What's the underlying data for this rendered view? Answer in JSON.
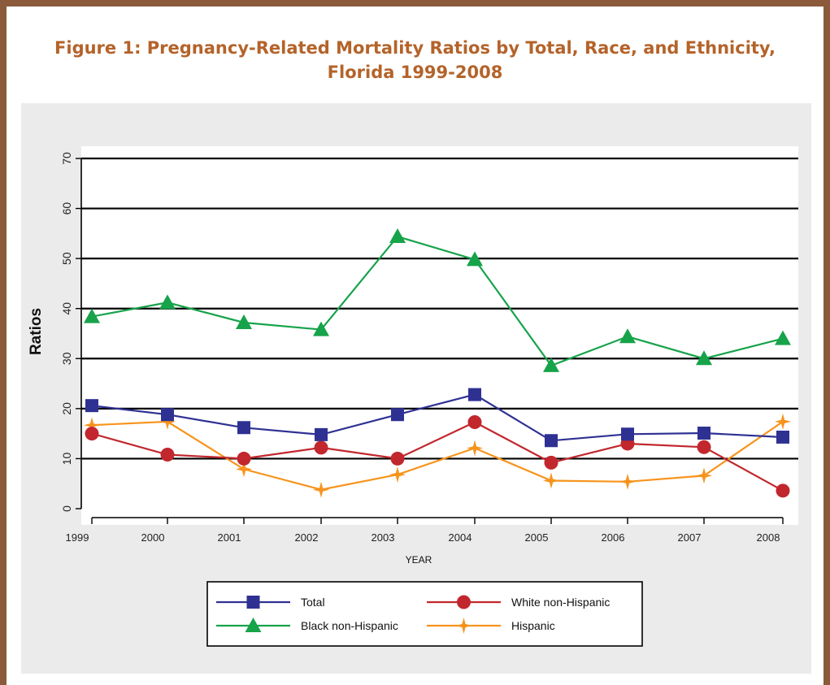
{
  "title": "Figure 1: Pregnancy-Related Mortality Ratios by Total, Race, and Ethnicity, Florida 1999-2008",
  "colors": {
    "frame": "#8a5a3b",
    "title": "#b4632a",
    "panel": "#ebebeb",
    "total": "#2e3192",
    "white": "#c1272d",
    "black": "#16a34a",
    "hispanic": "#f7941d"
  },
  "chart_data": {
    "type": "line",
    "title": "Figure 1: Pregnancy-Related Mortality Ratios by Total, Race, and Ethnicity, Florida 1999-2008",
    "xlabel": "YEAR",
    "ylabel": "Ratios",
    "x": [
      "1999",
      "2000",
      "2001",
      "2002",
      "2003",
      "2004",
      "2005",
      "2006",
      "2007",
      "2008"
    ],
    "yticks": [
      "0",
      "10",
      "20",
      "30",
      "40",
      "50",
      "60",
      "70"
    ],
    "ylim": [
      0,
      70
    ],
    "grid": "horizontal",
    "legend_position": "bottom",
    "series": [
      {
        "name": "Total",
        "marker": "square",
        "color": "#2e3192",
        "values": [
          20.6,
          18.8,
          16.2,
          14.8,
          18.8,
          22.8,
          13.6,
          14.9,
          15.1,
          14.3
        ]
      },
      {
        "name": "White non-Hispanic",
        "marker": "circle",
        "color": "#c1272d",
        "values": [
          15.0,
          10.8,
          10.0,
          12.2,
          10.0,
          17.3,
          9.2,
          13.0,
          12.3,
          3.6
        ]
      },
      {
        "name": "Black non-Hispanic",
        "marker": "triangle",
        "color": "#16a34a",
        "values": [
          38.4,
          41.2,
          37.2,
          35.8,
          54.4,
          49.8,
          28.6,
          34.4,
          30.0,
          34.0
        ]
      },
      {
        "name": "Hispanic",
        "marker": "star",
        "color": "#f7941d",
        "values": [
          16.7,
          17.4,
          7.9,
          3.8,
          6.8,
          12.1,
          5.6,
          5.4,
          6.6,
          17.4
        ]
      }
    ]
  }
}
